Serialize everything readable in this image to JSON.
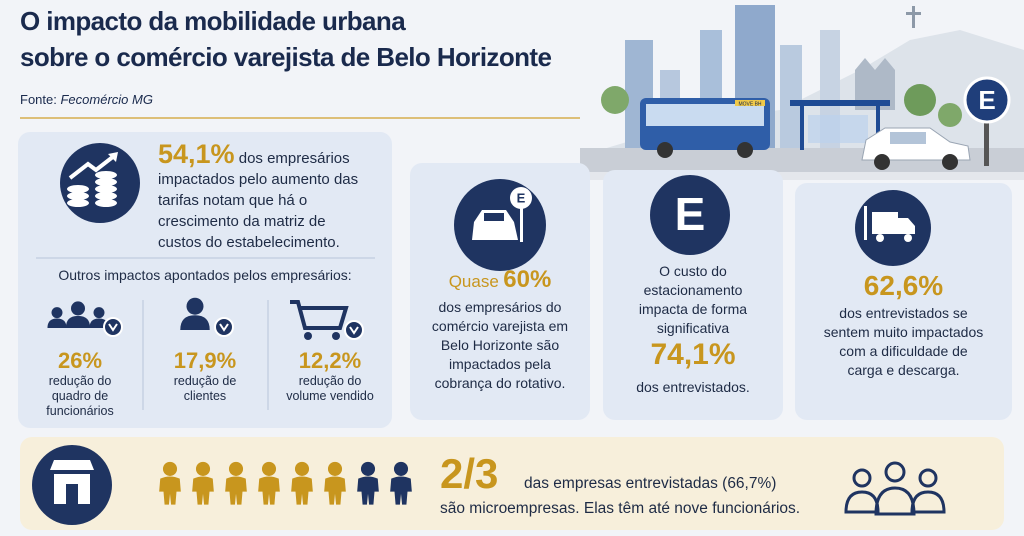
{
  "header": {
    "title_line1": "O impacto da mobilidade urbana",
    "title_line2": "sobre o comércio varejista de Belo Horizonte",
    "source_label": "Fonte:",
    "source": "Fecomércio MG"
  },
  "illustration": {
    "bus_sign": "MOVE BH",
    "parking_sign": "E"
  },
  "card_costs": {
    "highlight": "54,1%",
    "text": "dos empresários impactados pelo aumento das tarifas notam que há o crescimento da matriz de custos do estabelecimento.",
    "subtitle": "Outros impactos apontados pelos empresários:",
    "items": [
      {
        "value": "26%",
        "label": "redução do quadro de funcionários"
      },
      {
        "value": "17,9%",
        "label": "redução de clientes"
      },
      {
        "value": "12,2%",
        "label": "redução do volume vendido"
      }
    ]
  },
  "card_rotativo": {
    "prefix": "Quase",
    "highlight": "60%",
    "text": "dos empresários do comércio varejista em Belo Horizonte são impactados pela cobrança do rotativo.",
    "icon_sign": "E"
  },
  "card_parking": {
    "icon": "E",
    "text": "O custo do estacionamento impacta de forma significativa",
    "highlight": "74,1%",
    "suffix": "dos entrevistados."
  },
  "card_loading": {
    "highlight": "62,6%",
    "text": "dos entrevistados se sentem muito impactados com a dificuldade de carga e descarga."
  },
  "footer": {
    "highlight": "2/3",
    "text_line1": "das empresas entrevistadas (66,7%)",
    "text_line2": "são microempresas. Elas têm até nove funcionários."
  }
}
